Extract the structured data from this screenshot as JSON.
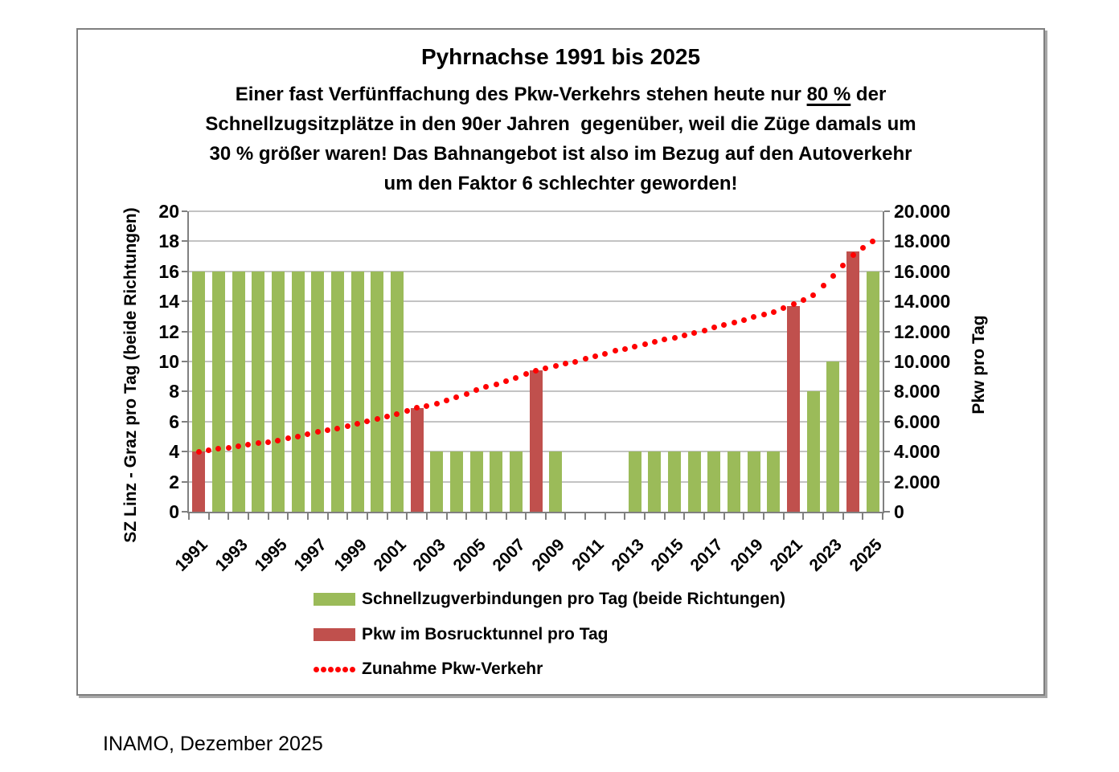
{
  "title": "Pyhrnachse 1991 bis 2025",
  "subtitle": {
    "line1_pre": "Einer fast Verfünffachung des Pkw-Verkehrs stehen heute nur ",
    "line1_underlined": "80 %",
    "line1_post": " der",
    "line2": "Schnellzugsitzplätze in den 90er Jahren  gegenüber, weil die Züge damals um",
    "line3": "30 % größer waren! Das Bahnangebot ist also im Bezug auf den Autoverkehr",
    "line4": "um den Faktor 6 schlechter geworden!"
  },
  "chart_data": {
    "type": "bar",
    "categories": [
      1991,
      1992,
      1993,
      1994,
      1995,
      1996,
      1997,
      1998,
      1999,
      2000,
      2001,
      2002,
      2003,
      2004,
      2005,
      2006,
      2007,
      2008,
      2009,
      2010,
      2011,
      2012,
      2013,
      2014,
      2015,
      2016,
      2017,
      2018,
      2019,
      2020,
      2021,
      2022,
      2023,
      2024,
      2025
    ],
    "series": [
      {
        "name": "Schnellzugverbindungen pro Tag (beide Richtungen)",
        "type": "bar",
        "axis": "left",
        "color": "#9BBB59",
        "values": [
          16,
          16,
          16,
          16,
          16,
          16,
          16,
          16,
          16,
          16,
          16,
          null,
          4,
          4,
          4,
          4,
          4,
          null,
          4,
          null,
          null,
          null,
          4,
          4,
          4,
          4,
          4,
          4,
          4,
          4,
          null,
          8,
          10,
          null,
          16
        ]
      },
      {
        "name": "Pkw im Bosrucktunnel pro Tag",
        "type": "bar",
        "axis": "right",
        "color": "#C0504D",
        "values": [
          4000,
          null,
          null,
          null,
          null,
          null,
          null,
          null,
          null,
          null,
          null,
          6900,
          null,
          null,
          null,
          null,
          null,
          9400,
          null,
          null,
          null,
          null,
          null,
          null,
          null,
          null,
          null,
          null,
          null,
          null,
          13700,
          null,
          null,
          17300,
          null
        ]
      },
      {
        "name": "Zunahme Pkw-Verkehr",
        "type": "dotted-line",
        "axis": "right",
        "color": "#FF0000",
        "values": [
          4000,
          4200,
          4350,
          4550,
          4750,
          5000,
          5300,
          5550,
          5850,
          6200,
          6500,
          6900,
          7200,
          7600,
          8100,
          8500,
          8900,
          9400,
          9700,
          10000,
          10350,
          10700,
          11000,
          11300,
          11600,
          11900,
          12250,
          12600,
          12950,
          13300,
          13800,
          14400,
          15700,
          17100,
          18000
        ]
      }
    ],
    "left_axis": {
      "title": "SZ Linz - Graz pro Tag (beide Richtungen)",
      "min": 0,
      "max": 20,
      "step": 2,
      "tick_labels": [
        "0",
        "2",
        "4",
        "6",
        "8",
        "10",
        "12",
        "14",
        "16",
        "18",
        "20"
      ]
    },
    "right_axis": {
      "title": "Pkw pro Tag",
      "min": 0,
      "max": 20000,
      "step": 2000,
      "tick_labels": [
        "0",
        "2.000",
        "4.000",
        "6.000",
        "8.000",
        "10.000",
        "12.000",
        "14.000",
        "16.000",
        "18.000",
        "20.000"
      ]
    },
    "x_axis": {
      "tick_labels": [
        "1991",
        "1993",
        "1995",
        "1997",
        "1999",
        "2001",
        "2003",
        "2005",
        "2007",
        "2009",
        "2011",
        "2013",
        "2015",
        "2017",
        "2019",
        "2021",
        "2023",
        "2025"
      ],
      "label_rotation": -45
    },
    "grid": true,
    "legend_position": "bottom-left"
  },
  "legend": [
    {
      "label": "Schnellzugverbindungen pro Tag (beide Richtungen)",
      "swatch": "green-bar",
      "color": "#9BBB59"
    },
    {
      "label": "Pkw im Bosrucktunnel pro Tag",
      "swatch": "red-bar",
      "color": "#C0504D"
    },
    {
      "label": "Zunahme Pkw-Verkehr",
      "swatch": "red-dots",
      "color": "#FF0000"
    }
  ],
  "caption": "INAMO, Dezember 2025"
}
